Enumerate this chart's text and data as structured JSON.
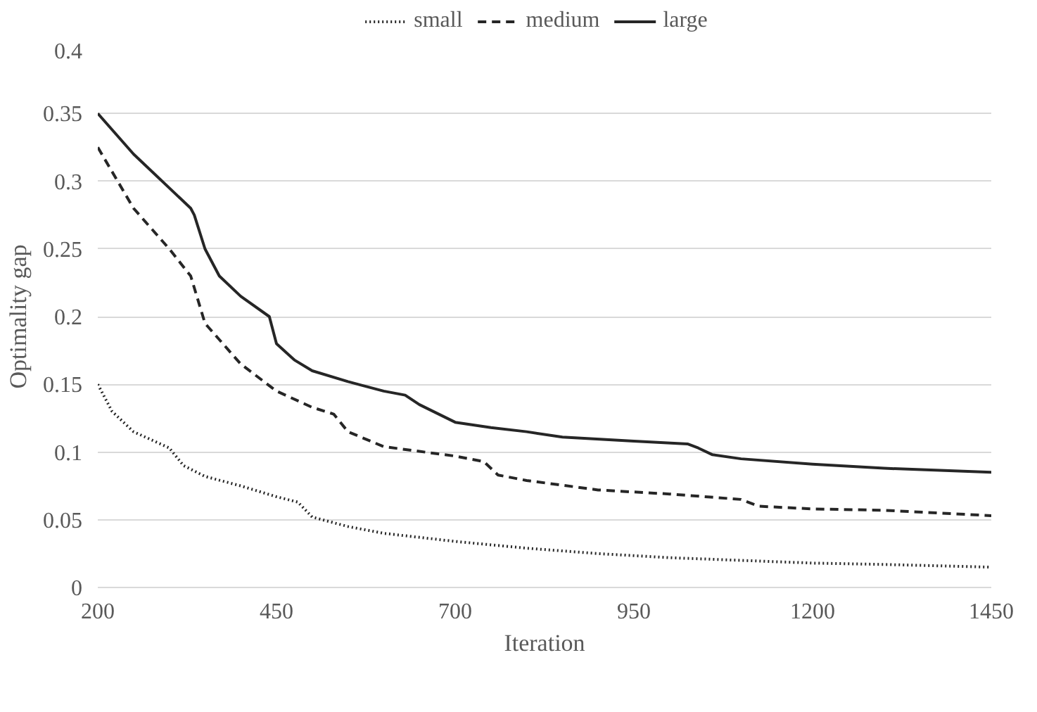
{
  "chart_data": {
    "type": "line",
    "xlabel": "Iteration",
    "ylabel": "Optimality gap",
    "xlim": [
      200,
      1450
    ],
    "xticks": [
      200,
      450,
      700,
      950,
      1200,
      1450
    ],
    "ylim": [
      0,
      0.4
    ],
    "yticks": [
      0,
      0.05,
      0.1,
      0.15,
      0.2,
      0.25,
      0.3,
      0.35,
      0.4
    ],
    "grid": "y",
    "legend": "top",
    "marker": "none",
    "series": [
      {
        "name": "small",
        "color": "#262626",
        "line_style": "dotted",
        "x": [
          200,
          220,
          250,
          300,
          320,
          350,
          400,
          450,
          480,
          500,
          550,
          600,
          700,
          800,
          900,
          1000,
          1100,
          1200,
          1300,
          1450
        ],
        "values": [
          0.15,
          0.13,
          0.115,
          0.103,
          0.09,
          0.082,
          0.075,
          0.067,
          0.063,
          0.052,
          0.045,
          0.04,
          0.034,
          0.029,
          0.025,
          0.022,
          0.02,
          0.018,
          0.017,
          0.015
        ]
      },
      {
        "name": "medium",
        "color": "#262626",
        "line_style": "dashed",
        "x": [
          200,
          250,
          300,
          330,
          350,
          400,
          450,
          500,
          530,
          550,
          600,
          700,
          740,
          760,
          800,
          900,
          1000,
          1100,
          1125,
          1200,
          1300,
          1450
        ],
        "values": [
          0.325,
          0.28,
          0.25,
          0.23,
          0.195,
          0.165,
          0.145,
          0.133,
          0.128,
          0.115,
          0.104,
          0.097,
          0.093,
          0.083,
          0.079,
          0.072,
          0.069,
          0.065,
          0.06,
          0.058,
          0.057,
          0.053
        ]
      },
      {
        "name": "large",
        "color": "#262626",
        "line_style": "solid",
        "x": [
          200,
          250,
          300,
          330,
          335,
          350,
          370,
          400,
          440,
          450,
          475,
          500,
          550,
          600,
          630,
          650,
          700,
          750,
          800,
          850,
          950,
          1025,
          1040,
          1060,
          1100,
          1200,
          1300,
          1450
        ],
        "values": [
          0.35,
          0.32,
          0.295,
          0.28,
          0.275,
          0.25,
          0.23,
          0.215,
          0.2,
          0.18,
          0.168,
          0.16,
          0.152,
          0.145,
          0.142,
          0.135,
          0.122,
          0.118,
          0.115,
          0.111,
          0.108,
          0.106,
          0.103,
          0.098,
          0.095,
          0.091,
          0.088,
          0.085
        ]
      }
    ]
  }
}
